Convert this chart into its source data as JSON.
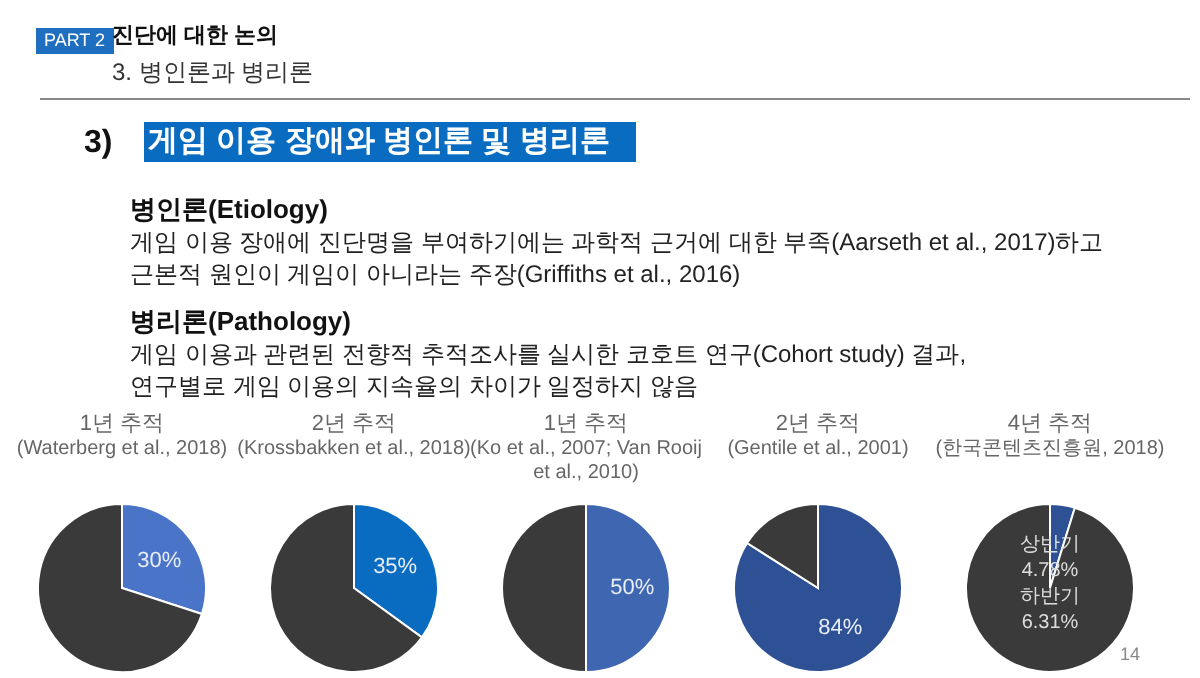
{
  "chart_data": [
    {
      "type": "other",
      "title": "게임 이용 장애와 병인론 및 병리론",
      "annotations": [
        "PART 2",
        "진단에 대한 논의",
        "3. 병인론과 병리론",
        "3)",
        "병인론(Etiology)",
        "게임 이용 장애에 진단명을 부여하기에는 과학적 근거에 대한 부족(Aarseth et al., 2017)하고",
        "근본적 원인이 게임이 아니라는 주장(Griffiths et al., 2016)",
        "병리론(Pathology)",
        "게임 이용과 관련된 전향적 추적조사를 실시한 코호트 연구(Cohort study) 결과,",
        "연구별로 게임 이용의 지속율의 차이가 일정하지 않음",
        "14"
      ]
    },
    {
      "type": "pie",
      "title": "1년 추적",
      "subtitle": "(Waterberg et al., 2018)",
      "categories": [
        null,
        null
      ],
      "values": [
        30,
        70
      ],
      "colors": [
        "#4a74c8",
        "#3a3a3a"
      ],
      "value_labels": [
        "30%",
        null
      ]
    },
    {
      "type": "pie",
      "title": "2년 추적",
      "subtitle": "(Krossbakken et al., 2018)",
      "categories": [
        null,
        null
      ],
      "values": [
        35,
        65
      ],
      "colors": [
        "#0a6cc0",
        "#3a3a3a"
      ],
      "value_labels": [
        "35%",
        null
      ]
    },
    {
      "type": "pie",
      "title": "1년 추적",
      "subtitle": "(Ko et al., 2007; Van Rooij et al., 2010)",
      "categories": [
        null,
        null
      ],
      "values": [
        50,
        50
      ],
      "colors": [
        "#3f66b0",
        "#3a3a3a"
      ],
      "value_labels": [
        "50%",
        null
      ]
    },
    {
      "type": "pie",
      "title": "2년 추적",
      "subtitle": "(Gentile et al., 2001)",
      "categories": [
        null,
        null
      ],
      "values": [
        84,
        16
      ],
      "colors": [
        "#2e5196",
        "#3a3a3a"
      ],
      "value_labels": [
        "84%",
        null
      ]
    },
    {
      "type": "pie",
      "title": "4년 추적",
      "subtitle": "(한국콘텐츠진흥원, 2018)",
      "categories": [
        null,
        null
      ],
      "values": [
        4.78,
        95.22
      ],
      "colors": [
        "#2e5196",
        "#3a3a3a"
      ],
      "annotations": [
        "상반기",
        "4.78%",
        "하반기",
        "6.31%"
      ]
    }
  ]
}
